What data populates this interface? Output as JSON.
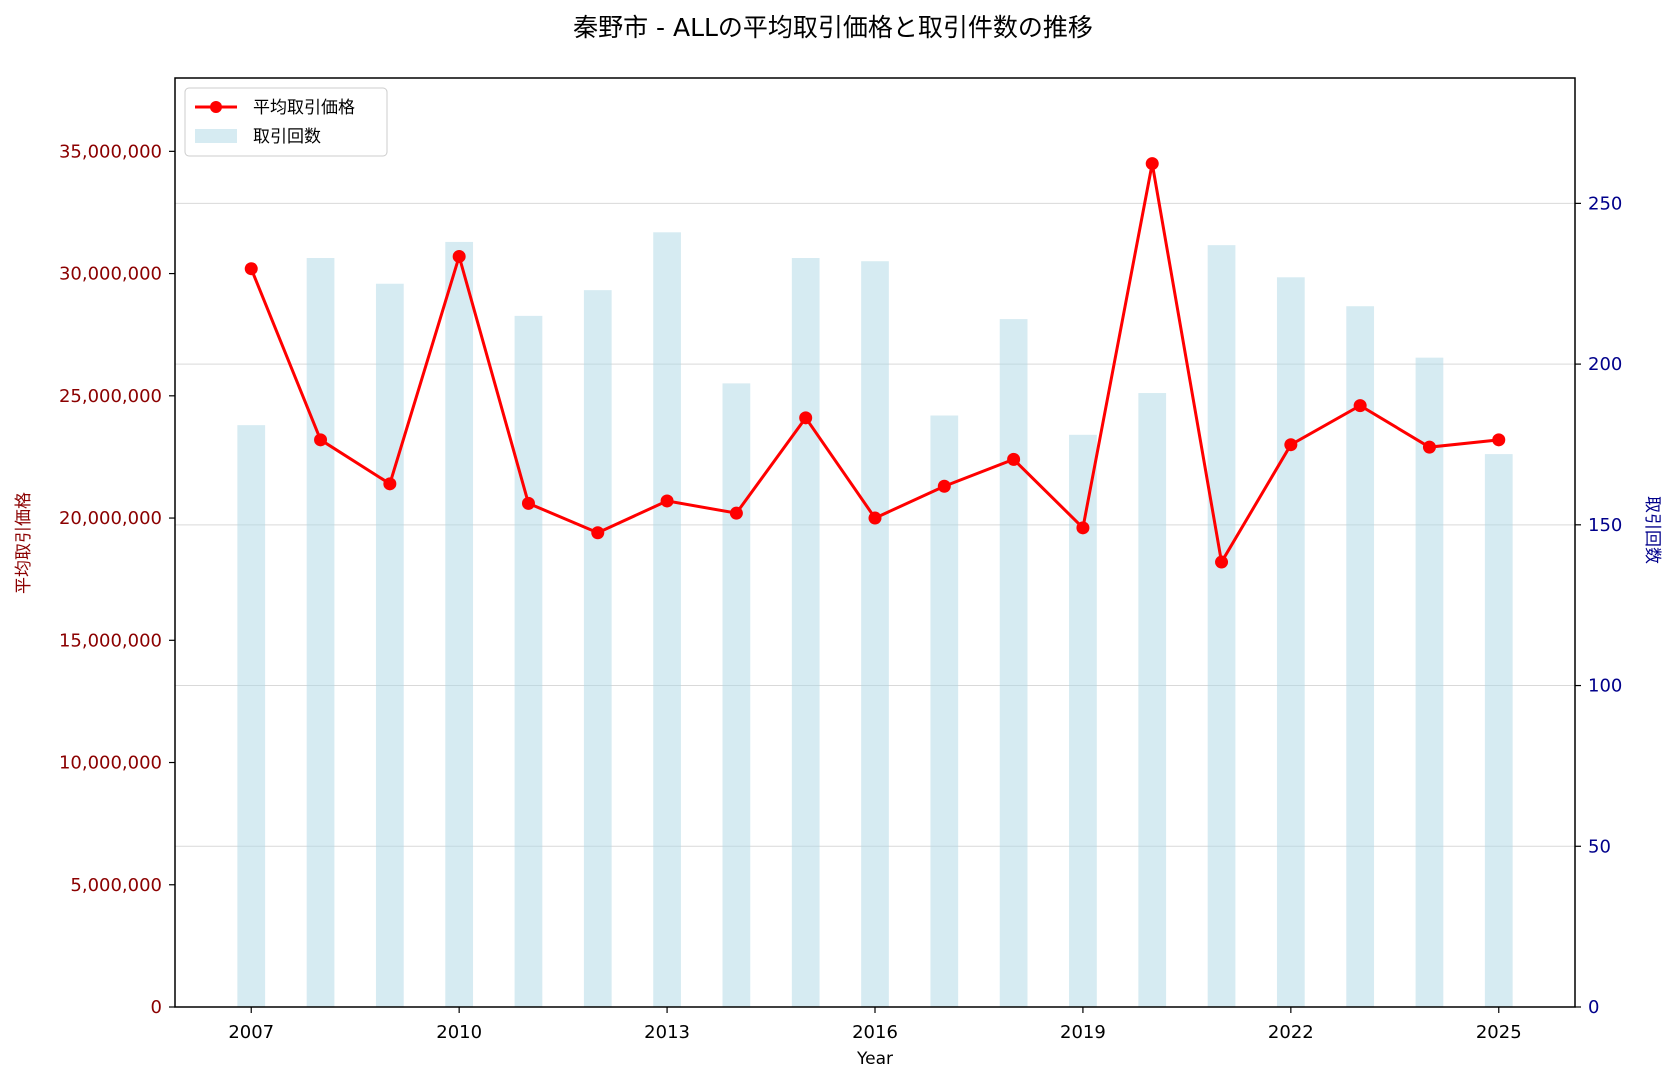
{
  "chart_data": {
    "type": "bar+line",
    "title": "秦野市 - ALLの平均取引価格と取引件数の推移",
    "xlabel": "Year",
    "ylabel_left": "平均取引価格",
    "ylabel_right": "取引回数",
    "x": [
      2007,
      2008,
      2009,
      2010,
      2011,
      2012,
      2013,
      2014,
      2015,
      2016,
      2017,
      2018,
      2019,
      2020,
      2021,
      2022,
      2023,
      2024,
      2025
    ],
    "x_ticks": [
      "2007",
      "2010",
      "2013",
      "2016",
      "2019",
      "2022",
      "2025"
    ],
    "xlim": [
      2005.9,
      2026.1
    ],
    "ylim_left": [
      0,
      38000000
    ],
    "ylim_right": [
      0,
      289
    ],
    "left_ticks": [
      "0",
      "5,000,000",
      "10,000,000",
      "15,000,000",
      "20,000,000",
      "25,000,000",
      "30,000,000",
      "35,000,000"
    ],
    "left_tick_values": [
      0,
      5000000,
      10000000,
      15000000,
      20000000,
      25000000,
      30000000,
      35000000
    ],
    "right_ticks": [
      "0",
      "50",
      "100",
      "150",
      "200",
      "250"
    ],
    "right_tick_values": [
      0,
      50,
      100,
      150,
      200,
      250
    ],
    "grid": "right-axis, horizontal",
    "legend_position": "top-left",
    "series": [
      {
        "name": "平均取引価格",
        "kind": "line",
        "axis": "left",
        "color": "#ff0000",
        "values": [
          30200000,
          23200000,
          21400000,
          30700000,
          20600000,
          19400000,
          20700000,
          20200000,
          24100000,
          20000000,
          21300000,
          22400000,
          19600000,
          34500000,
          18200000,
          23000000,
          24600000,
          22900000,
          23200000
        ]
      },
      {
        "name": "取引回数",
        "kind": "bar",
        "axis": "right",
        "color": "#add8e6",
        "values": [
          181,
          233,
          225,
          238,
          215,
          223,
          241,
          194,
          233,
          232,
          184,
          214,
          178,
          191,
          237,
          227,
          218,
          202,
          172
        ]
      }
    ]
  }
}
